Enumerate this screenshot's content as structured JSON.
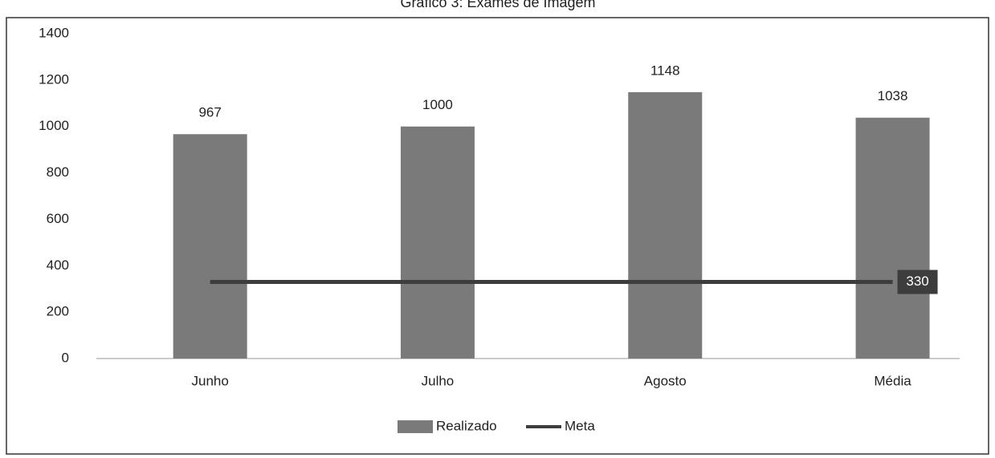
{
  "chart_data": {
    "type": "bar",
    "title": "Gráfico 3: Exames de Imagem",
    "categories": [
      "Junho",
      "Julho",
      "Agosto",
      "Média"
    ],
    "series": [
      {
        "name": "Realizado",
        "type": "bar",
        "color": "#7a7a7a",
        "values": [
          967,
          1000,
          1148,
          1038
        ]
      },
      {
        "name": "Meta",
        "type": "line",
        "color": "#3d3d3d",
        "values": [
          330,
          330,
          330,
          330
        ]
      }
    ],
    "ylim": [
      0,
      1400
    ],
    "yticks": [
      0,
      200,
      400,
      600,
      800,
      1000,
      1200,
      1400
    ],
    "grid": false,
    "legend": "bottom"
  }
}
